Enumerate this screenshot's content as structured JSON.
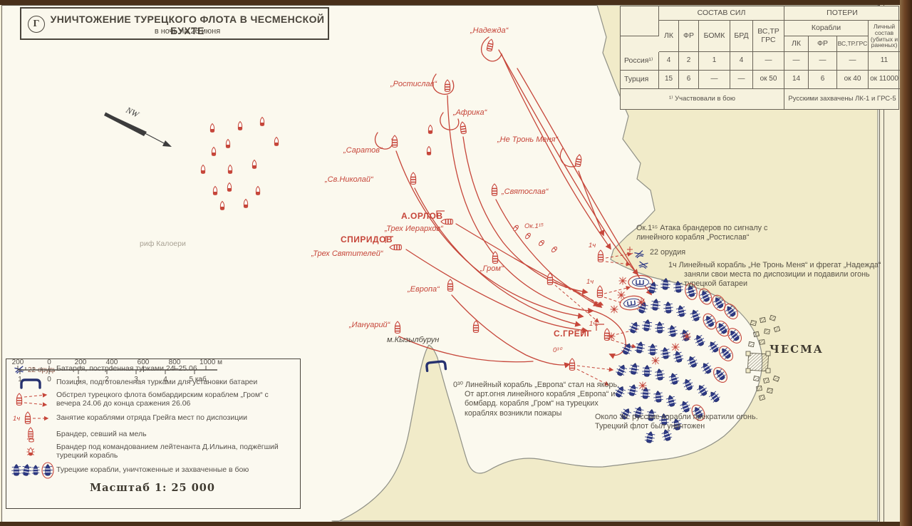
{
  "frame": {
    "corner_mark": "Г"
  },
  "title": {
    "main": "УНИЧТОЖЕНИЕ ТУРЕЦКОГО ФЛОТА В ЧЕСМЕНСКОЙ БУХТЕ",
    "sub": "в ночь на 26 июня"
  },
  "compass": {
    "label": "NW"
  },
  "table": {
    "group_composition": "СОСТАВ СИЛ",
    "group_losses": "ПОТЕРИ",
    "sub_ships": "Корабли",
    "sub_personnel": "Личный состав (убитых и раненых)",
    "cols_composition": [
      "ЛК",
      "ФР",
      "БОМК",
      "БРД",
      "ВС,ТР ГРС"
    ],
    "cols_losses_ships": [
      "ЛК",
      "ФР",
      "ВС,ТР.ГРС"
    ],
    "rows": [
      {
        "name": "Россия¹⁾",
        "values": [
          "4",
          "2",
          "1",
          "4",
          "—",
          "—",
          "—",
          "—",
          "11"
        ]
      },
      {
        "name": "Турция",
        "values": [
          "15",
          "6",
          "—",
          "—",
          "ок 50",
          "14",
          "6",
          "ок 40",
          "ок 11000"
        ]
      }
    ],
    "footnote_left": "¹⁾ Участвовали в бою",
    "footnote_right": "Русскими захвачены ЛК-1 и ГРС-5"
  },
  "legend": {
    "items": [
      {
        "caption": "22 орудия",
        "text": "Батарея, построенная турками 24–25.06"
      },
      {
        "caption": "",
        "text": "Позиция, подготовленная турками для установки батареи"
      },
      {
        "caption": "",
        "text": "Обстрел турецкого флота бомбардирским кораблем „Гром“ с вечера 24.06 до конца сражения 26.06"
      },
      {
        "caption": "1ч",
        "text": "Занятие кораблями отряда Грейга мест по диспозиции"
      },
      {
        "caption": "",
        "text": "Брандер, севший на мель"
      },
      {
        "caption": "",
        "text": "Брандер под командованием лейтенанта Д.Ильина, поджёгший турецкий корабль"
      },
      {
        "caption": "",
        "text": "Турецкие корабли, уничтоженные и захваченные в бою"
      }
    ],
    "scale_title": "Масштаб 1: 25 000",
    "scale_meters": [
      "200",
      "0",
      "200",
      "400",
      "600",
      "800",
      "1000 м"
    ],
    "scale_cables": [
      "1",
      "0",
      "1",
      "2",
      "3",
      "4",
      "5 каб."
    ]
  },
  "map": {
    "labels": {
      "nadezhda": "„Надежда“",
      "rostislav": "„Ростислав“",
      "africa": "„Африка“",
      "ne_tron_menya": "„Не Тронь Меня“",
      "saratov": "„Саратов“",
      "sv_nikolay": "„Св.Николай“",
      "svyatoslav": "„Святослав“",
      "orlov": "А.ОРЛОВ",
      "trekh_ierarkhov": "„Трех Иерархов“",
      "spiridov": "СПИРИДОВ",
      "trekh_svyatitelei": "„Трех Святителей“",
      "grom": "„Гром“",
      "evropa": "„Европа“",
      "ianuariy": "„Иануарий“",
      "kyzylburun": "м.Кызылбурун",
      "kaloeri": "риф Калоери",
      "greig": "С.ГРЕЙГ",
      "chesma": "ЧЕСМА",
      "t_ok115": "Ок.1¹⁵",
      "t_1ch_a": "1ч",
      "t_1ch_b": "1ч",
      "t_1ch_c": "1ч.",
      "t_030": "0³⁰"
    }
  },
  "annotations": {
    "guns22": "22 орудия",
    "attack": "Ок.1¹⁵ Атака брандеров по сигналу с линейного корабля „Ростислав“",
    "disposition": "1ч  Линейный корабль „Не Тронь Меня“ и фрегат „Надежда“ заняли свои места по диспозиции и подавили огонь турецкой батареи",
    "evropa_anchor": "0³⁰ Линейный корабль „Европа“ стал на якорь. От арт.огня линейного корабля „Европа“ и бомбард. корабля „Гром“ на турецких кораблях возникли пожары",
    "ceasefire": "Около 3ч. русские корабли прекратили огонь. Турецкий флот был уничтожен"
  },
  "colors": {
    "russian_red": "#c6463a",
    "turkish_navy": "#2e3a85",
    "paper": "#f4efd8",
    "land": "#f1ebc9",
    "sea": "#fbf9ee",
    "frame_brown": "#6d4325",
    "ink": "#55504a"
  }
}
